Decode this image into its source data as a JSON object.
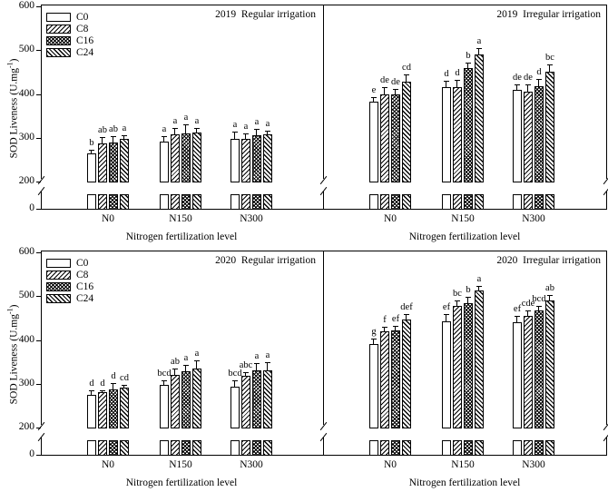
{
  "colors": {
    "ink": "#000000",
    "background": "#ffffff"
  },
  "axis": {
    "yticks": [
      "600",
      "500",
      "400",
      "300",
      "200",
      "0"
    ],
    "ylabel_prefix": "SOD Liveness (U.mg",
    "ylabel_sup": "-1",
    "ylabel_suffix": ")"
  },
  "legend": {
    "items": [
      {
        "label": "C0",
        "pattern": "plain-white"
      },
      {
        "label": "C8",
        "pattern": "forward-diagonal-hatch"
      },
      {
        "label": "C16",
        "pattern": "crosshatch-dots"
      },
      {
        "label": "C24",
        "pattern": "backward-diagonal-hatch"
      }
    ]
  },
  "chart_data": [
    {
      "type": "bar",
      "title": "2019  Regular irrigation",
      "categories": [
        "N0",
        "N150",
        "N300"
      ],
      "xlabel": "Nitrogen fertilization level",
      "ylabel": "SOD Liveness (U.mg-1)",
      "yticks": [
        0,
        200,
        300,
        400,
        500,
        600
      ],
      "ylim": [
        0,
        600
      ],
      "axis_break": {
        "hidden_range": [
          100,
          200
        ]
      },
      "series": [
        {
          "name": "C0",
          "values": [
            264,
            292,
            297
          ],
          "errors": [
            8,
            11,
            18
          ],
          "letters": [
            "b",
            "a",
            "a"
          ]
        },
        {
          "name": "C8",
          "values": [
            288,
            308,
            297
          ],
          "errors": [
            14,
            14,
            12
          ],
          "letters": [
            "ab",
            "a",
            "a"
          ]
        },
        {
          "name": "C16",
          "values": [
            289,
            310,
            305
          ],
          "errors": [
            14,
            21,
            16
          ],
          "letters": [
            "ab",
            "a",
            "a"
          ]
        },
        {
          "name": "C24",
          "values": [
            298,
            311,
            307
          ],
          "errors": [
            7,
            12,
            9
          ],
          "letters": [
            "a",
            "a",
            "a"
          ]
        }
      ]
    },
    {
      "type": "bar",
      "title": "2019  Irregular irrigation",
      "categories": [
        "N0",
        "N150",
        "N300"
      ],
      "xlabel": "Nitrogen fertilization level",
      "ylabel": "SOD Liveness (U.mg-1)",
      "yticks": [
        0,
        200,
        300,
        400,
        500,
        600
      ],
      "ylim": [
        0,
        600
      ],
      "axis_break": {
        "hidden_range": [
          100,
          200
        ]
      },
      "series": [
        {
          "name": "C0",
          "values": [
            382,
            415,
            409
          ],
          "errors": [
            11,
            16,
            13
          ],
          "letters": [
            "e",
            "d",
            "de"
          ]
        },
        {
          "name": "C8",
          "values": [
            399,
            415,
            406
          ],
          "errors": [
            16,
            18,
            15
          ],
          "letters": [
            "de",
            "d",
            "de"
          ]
        },
        {
          "name": "C16",
          "values": [
            399,
            460,
            418
          ],
          "errors": [
            13,
            11,
            17
          ],
          "letters": [
            "de",
            "b",
            "d"
          ]
        },
        {
          "name": "C24",
          "values": [
            428,
            491,
            450
          ],
          "errors": [
            16,
            13,
            17
          ],
          "letters": [
            "cd",
            "a",
            "bc"
          ]
        }
      ]
    },
    {
      "type": "bar",
      "title": "2020  Regular irrigation",
      "categories": [
        "N0",
        "N150",
        "N300"
      ],
      "xlabel": "Nitrogen fertilization level",
      "ylabel": "SOD Liveness (U.mg-1)",
      "yticks": [
        0,
        200,
        300,
        400,
        500,
        600
      ],
      "ylim": [
        0,
        600
      ],
      "axis_break": {
        "hidden_range": [
          100,
          200
        ]
      },
      "series": [
        {
          "name": "C0",
          "values": [
            275,
            297,
            294
          ],
          "errors": [
            11,
            11,
            14
          ],
          "letters": [
            "d",
            "bcd",
            "bcd"
          ]
        },
        {
          "name": "C8",
          "values": [
            280,
            321,
            318
          ],
          "errors": [
            6,
            13,
            9
          ],
          "letters": [
            "d",
            "ab",
            "abc"
          ]
        },
        {
          "name": "C16",
          "values": [
            288,
            328,
            330
          ],
          "errors": [
            14,
            16,
            17
          ],
          "letters": [
            "d",
            "a",
            "a"
          ]
        },
        {
          "name": "C24",
          "values": [
            291,
            334,
            330
          ],
          "errors": [
            7,
            19,
            19
          ],
          "letters": [
            "cd",
            "a",
            "a"
          ]
        }
      ]
    },
    {
      "type": "bar",
      "title": "2020  Irregular irrigation",
      "categories": [
        "N0",
        "N150",
        "N300"
      ],
      "xlabel": "Nitrogen fertilization level",
      "ylabel": "SOD Liveness (U.mg-1)",
      "yticks": [
        0,
        200,
        300,
        400,
        500,
        600
      ],
      "ylim": [
        0,
        600
      ],
      "axis_break": {
        "hidden_range": [
          100,
          200
        ]
      },
      "series": [
        {
          "name": "C0",
          "values": [
            391,
            443,
            440
          ],
          "errors": [
            13,
            16,
            15
          ],
          "letters": [
            "g",
            "ef",
            "ef"
          ]
        },
        {
          "name": "C8",
          "values": [
            419,
            478,
            455
          ],
          "errors": [
            11,
            13,
            13
          ],
          "letters": [
            "f",
            "bc",
            "cde"
          ]
        },
        {
          "name": "C16",
          "values": [
            421,
            483,
            468
          ],
          "errors": [
            11,
            16,
            9
          ],
          "letters": [
            "ef",
            "b",
            "bcd"
          ]
        },
        {
          "name": "C24",
          "values": [
            446,
            512,
            490
          ],
          "errors": [
            13,
            11,
            13
          ],
          "letters": [
            "def",
            "a",
            "ab"
          ]
        }
      ]
    }
  ]
}
